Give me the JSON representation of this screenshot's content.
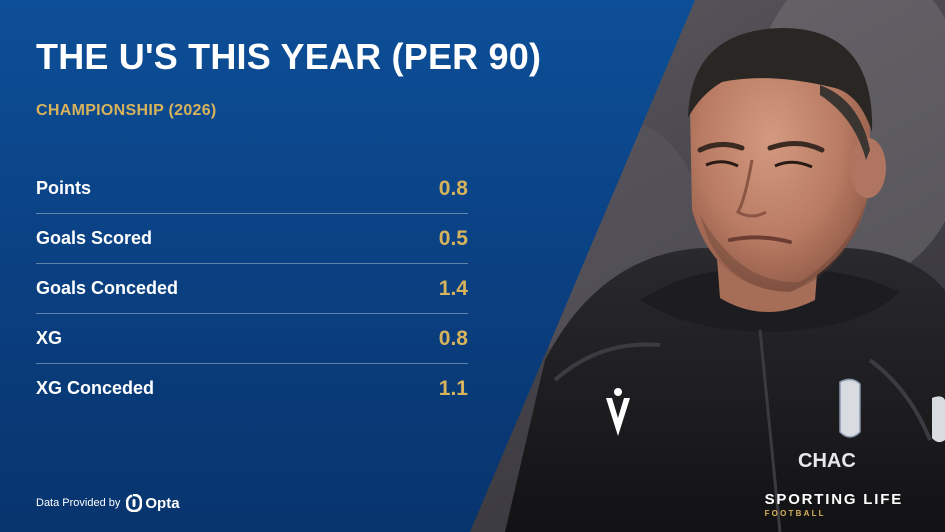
{
  "title": "THE U'S THIS YEAR (PER 90)",
  "subtitle": "CHAMPIONSHIP (2026)",
  "stats": [
    {
      "label": "Points",
      "value": "0.8"
    },
    {
      "label": "Goals Scored",
      "value": "0.5"
    },
    {
      "label": "Goals Conceded",
      "value": "1.4"
    },
    {
      "label": "XG",
      "value": "0.8"
    },
    {
      "label": "XG Conceded",
      "value": "1.1"
    }
  ],
  "credit": {
    "text": "Data Provided by",
    "logo": "Opta"
  },
  "brand": {
    "main": "SPORTING LIFE",
    "sub": "FOOTBALL"
  },
  "jacket_text": "CHAC",
  "colors": {
    "panel": "#0b3f80",
    "accent": "#d7b35b",
    "text": "#ffffff"
  }
}
